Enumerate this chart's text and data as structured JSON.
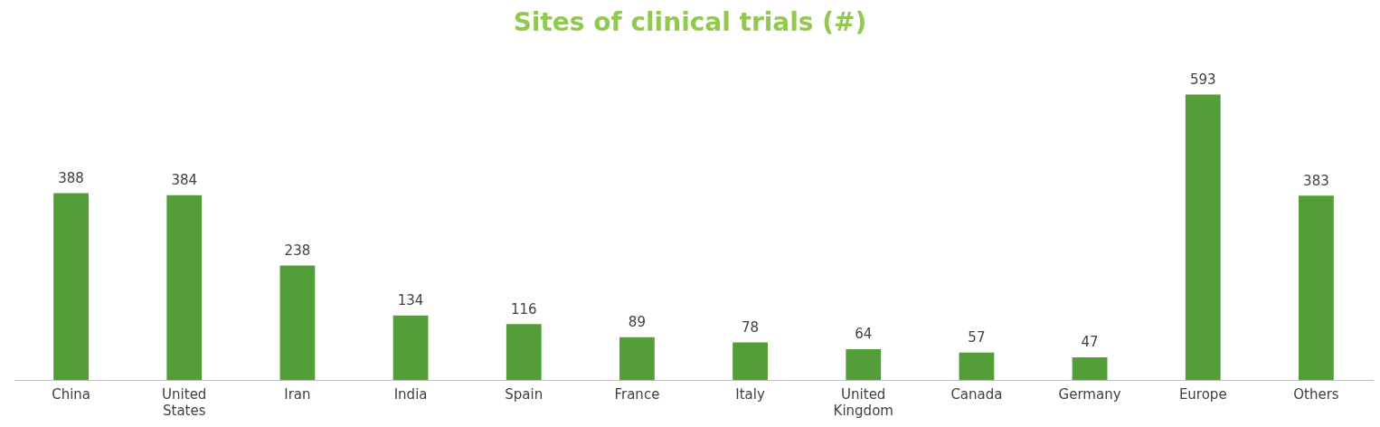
{
  "chart_data": {
    "type": "bar",
    "title": "Sites of clinical trials (#)",
    "categories": [
      "China",
      "United States",
      "Iran",
      "India",
      "Spain",
      "France",
      "Italy",
      "United Kingdom",
      "Canada",
      "Germany",
      "Europe",
      "Others"
    ],
    "values": [
      388,
      384,
      238,
      134,
      116,
      89,
      78,
      64,
      57,
      47,
      593,
      383
    ],
    "color": "#549e39",
    "data_labels": true,
    "grid": false,
    "legend": false
  }
}
